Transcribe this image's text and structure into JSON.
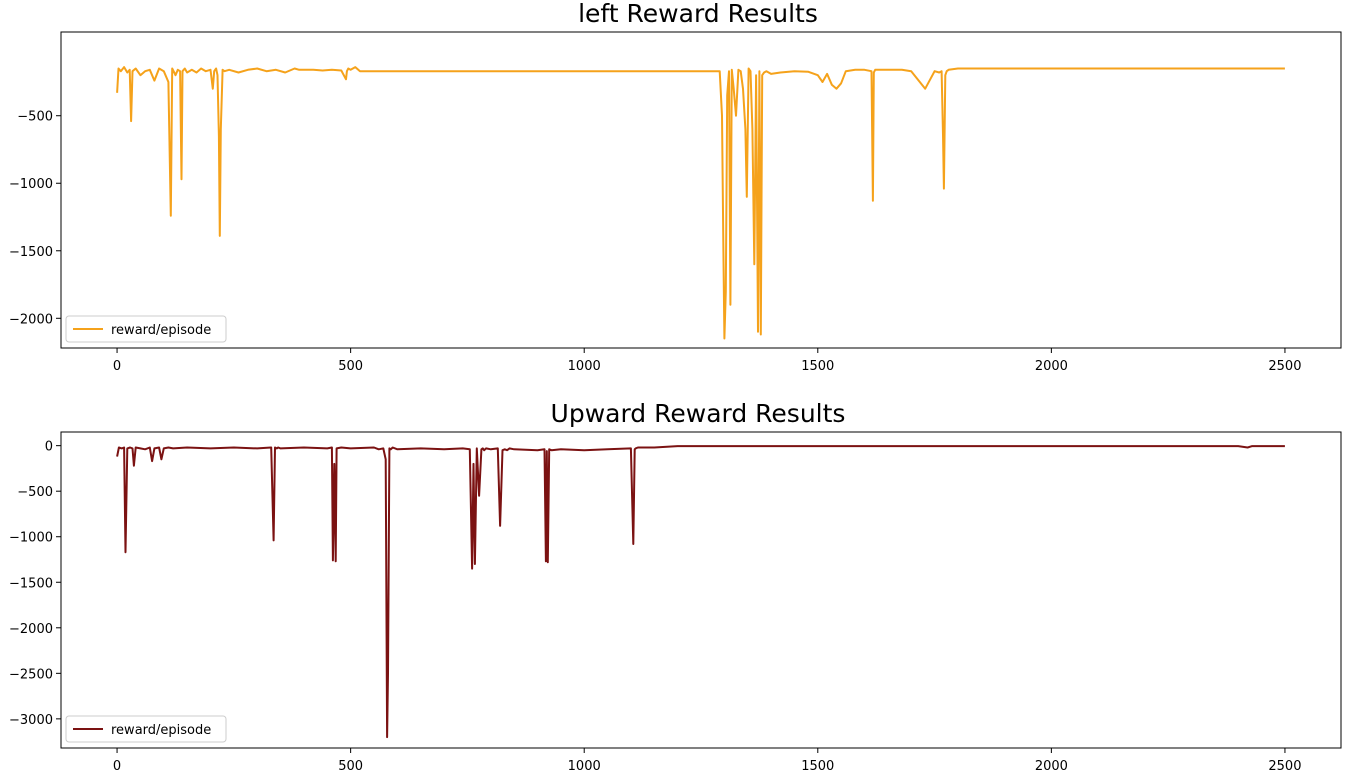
{
  "chart_data": [
    {
      "type": "line",
      "title": "left Reward Results",
      "color": "#f5a21b",
      "xlim": [
        -120,
        2620
      ],
      "ylim": [
        -2220,
        120
      ],
      "xticks": [
        0,
        500,
        1000,
        1500,
        2000,
        2500
      ],
      "yticks": [
        -500,
        -1000,
        -1500,
        -2000
      ],
      "legend": {
        "label": "reward/episode",
        "placement": "lower-left"
      },
      "grid": false,
      "series": [
        {
          "x": [
            0,
            3,
            8,
            15,
            22,
            27,
            30,
            33,
            40,
            50,
            60,
            70,
            80,
            90,
            100,
            110,
            115,
            118,
            121,
            125,
            130,
            135,
            138,
            140,
            145,
            150,
            160,
            170,
            180,
            190,
            200,
            205,
            208,
            212,
            215,
            218,
            220,
            222,
            226,
            230,
            240,
            260,
            280,
            300,
            320,
            340,
            360,
            380,
            390,
            400,
            420,
            440,
            460,
            480,
            490,
            492,
            495,
            500,
            510,
            520,
            530,
            600,
            700,
            800,
            900,
            1000,
            1100,
            1200,
            1290,
            1295,
            1298,
            1300,
            1303,
            1306,
            1310,
            1313,
            1316,
            1320,
            1325,
            1330,
            1335,
            1340,
            1345,
            1348,
            1352,
            1356,
            1360,
            1364,
            1368,
            1372,
            1375,
            1378,
            1381,
            1385,
            1390,
            1400,
            1420,
            1450,
            1480,
            1500,
            1510,
            1520,
            1530,
            1540,
            1550,
            1560,
            1580,
            1600,
            1615,
            1618,
            1620,
            1623,
            1630,
            1650,
            1680,
            1700,
            1730,
            1750,
            1760,
            1765,
            1768,
            1770,
            1773,
            1776,
            1780,
            1800,
            1850,
            1900,
            1950,
            2000,
            2100,
            2200,
            2300,
            2400,
            2450,
            2500
          ],
          "y": [
            -330,
            -150,
            -170,
            -140,
            -180,
            -160,
            -540,
            -170,
            -150,
            -200,
            -170,
            -160,
            -240,
            -150,
            -170,
            -250,
            -1240,
            -150,
            -170,
            -200,
            -160,
            -170,
            -970,
            -170,
            -150,
            -180,
            -160,
            -180,
            -150,
            -170,
            -160,
            -300,
            -170,
            -150,
            -200,
            -650,
            -1390,
            -600,
            -160,
            -170,
            -160,
            -180,
            -160,
            -150,
            -170,
            -160,
            -180,
            -150,
            -160,
            -160,
            -160,
            -165,
            -160,
            -165,
            -230,
            -170,
            -150,
            -160,
            -140,
            -170,
            -170,
            -170,
            -170,
            -170,
            -170,
            -170,
            -170,
            -170,
            -170,
            -500,
            -1500,
            -2150,
            -1800,
            -350,
            -170,
            -1900,
            -160,
            -300,
            -500,
            -160,
            -170,
            -300,
            -600,
            -1100,
            -150,
            -170,
            -600,
            -1600,
            -200,
            -2100,
            -170,
            -2120,
            -200,
            -180,
            -170,
            -190,
            -180,
            -170,
            -175,
            -200,
            -250,
            -190,
            -270,
            -300,
            -260,
            -170,
            -160,
            -160,
            -170,
            -1130,
            -180,
            -160,
            -160,
            -160,
            -160,
            -170,
            -300,
            -170,
            -180,
            -170,
            -640,
            -1040,
            -200,
            -170,
            -160,
            -150,
            -150,
            -150,
            -150,
            -150,
            -150,
            -150,
            -150,
            -150,
            -150,
            -150
          ]
        }
      ]
    },
    {
      "type": "line",
      "title": "Upward Reward Results",
      "color": "#7b1212",
      "xlim": [
        -120,
        2620
      ],
      "ylim": [
        -3320,
        150
      ],
      "xticks": [
        0,
        500,
        1000,
        1500,
        2000,
        2500
      ],
      "yticks": [
        0,
        -500,
        -1000,
        -1500,
        -2000,
        -2500,
        -3000
      ],
      "legend": {
        "label": "reward/episode",
        "placement": "lower-left"
      },
      "grid": false,
      "series": [
        {
          "x": [
            0,
            4,
            10,
            15,
            18,
            22,
            28,
            33,
            36,
            40,
            50,
            60,
            70,
            75,
            80,
            90,
            95,
            100,
            110,
            120,
            150,
            200,
            250,
            300,
            330,
            335,
            338,
            342,
            345,
            350,
            400,
            450,
            460,
            462,
            465,
            468,
            470,
            480,
            500,
            550,
            560,
            570,
            575,
            578,
            580,
            583,
            586,
            590,
            600,
            650,
            700,
            740,
            755,
            760,
            763,
            766,
            770,
            775,
            780,
            783,
            786,
            790,
            800,
            815,
            820,
            825,
            830,
            835,
            840,
            850,
            900,
            915,
            918,
            920,
            922,
            925,
            930,
            950,
            1000,
            1050,
            1100,
            1105,
            1108,
            1110,
            1115,
            1150,
            1200,
            1250,
            1300,
            1400,
            1500,
            1600,
            1700,
            1800,
            1900,
            2000,
            2100,
            2200,
            2300,
            2400,
            2420,
            2430,
            2450,
            2500
          ],
          "y": [
            -120,
            -20,
            -30,
            -20,
            -1170,
            -30,
            -20,
            -30,
            -220,
            -20,
            -30,
            -40,
            -20,
            -170,
            -30,
            -20,
            -150,
            -30,
            -20,
            -30,
            -20,
            -30,
            -20,
            -30,
            -20,
            -1040,
            -20,
            -30,
            -20,
            -30,
            -20,
            -30,
            -20,
            -1260,
            -200,
            -1270,
            -30,
            -20,
            -30,
            -20,
            -40,
            -30,
            -150,
            -3200,
            -2500,
            -30,
            -40,
            -20,
            -40,
            -30,
            -40,
            -30,
            -40,
            -1350,
            -200,
            -1300,
            -30,
            -550,
            -40,
            -30,
            -50,
            -30,
            -40,
            -30,
            -880,
            -50,
            -40,
            -50,
            -30,
            -40,
            -50,
            -40,
            -1270,
            -60,
            -1280,
            -40,
            -50,
            -40,
            -50,
            -40,
            -30,
            -1080,
            -40,
            -30,
            -20,
            -20,
            -5,
            -5,
            -5,
            -5,
            -5,
            -5,
            -5,
            -5,
            -5,
            -5,
            -5,
            -5,
            -5,
            -5,
            -20,
            -5,
            -5,
            -5
          ]
        }
      ]
    }
  ]
}
